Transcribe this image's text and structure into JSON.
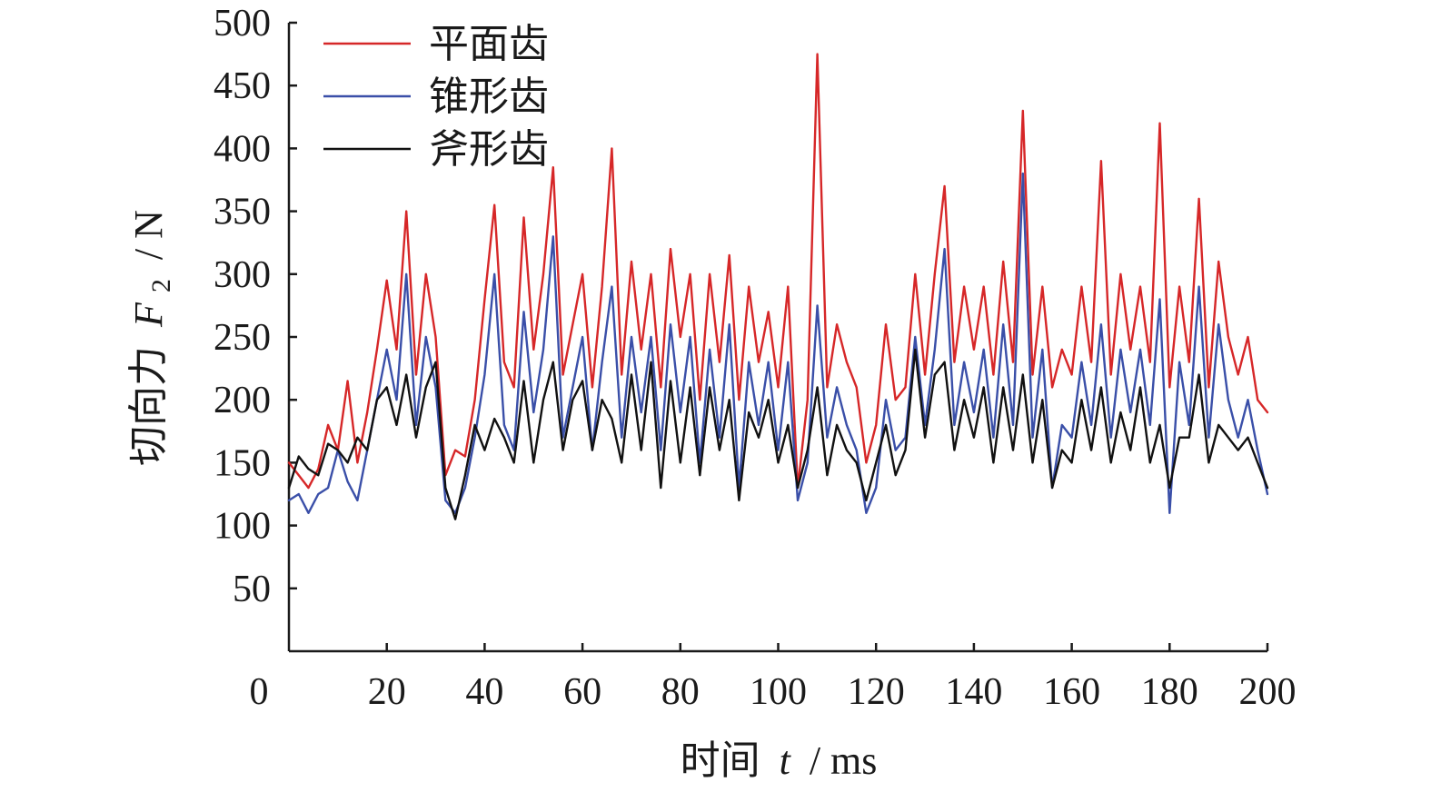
{
  "chart_data": {
    "type": "line",
    "title": "",
    "xlabel": {
      "prefix": "时间",
      "var": "t",
      "unit": "/ ms"
    },
    "ylabel": {
      "prefix": "切向力",
      "var": "F",
      "sub": "2",
      "unit": "/ N"
    },
    "xlim": [
      0,
      200
    ],
    "ylim": [
      0,
      500
    ],
    "x_ticks": [
      0,
      20,
      40,
      60,
      80,
      100,
      120,
      140,
      160,
      180,
      200
    ],
    "y_ticks": [
      50,
      100,
      150,
      200,
      250,
      300,
      350,
      400,
      450,
      500
    ],
    "grid": false,
    "legend_position": "top-left",
    "x": [
      0,
      2,
      4,
      6,
      8,
      10,
      12,
      14,
      16,
      18,
      20,
      22,
      24,
      26,
      28,
      30,
      32,
      34,
      36,
      38,
      40,
      42,
      44,
      46,
      48,
      50,
      52,
      54,
      56,
      58,
      60,
      62,
      64,
      66,
      68,
      70,
      72,
      74,
      76,
      78,
      80,
      82,
      84,
      86,
      88,
      90,
      92,
      94,
      96,
      98,
      100,
      102,
      104,
      106,
      108,
      110,
      112,
      114,
      116,
      118,
      120,
      122,
      124,
      126,
      128,
      130,
      132,
      134,
      136,
      138,
      140,
      142,
      144,
      146,
      148,
      150,
      152,
      154,
      156,
      158,
      160,
      162,
      164,
      166,
      168,
      170,
      172,
      174,
      176,
      178,
      180,
      182,
      184,
      186,
      188,
      190,
      192,
      194,
      196,
      198,
      200
    ],
    "series": [
      {
        "name": "平面齿",
        "color": "#d62728",
        "values": [
          150,
          140,
          130,
          145,
          180,
          160,
          215,
          150,
          190,
          240,
          295,
          240,
          350,
          220,
          300,
          250,
          140,
          160,
          155,
          200,
          280,
          355,
          230,
          210,
          345,
          240,
          300,
          385,
          220,
          260,
          300,
          210,
          290,
          400,
          220,
          310,
          240,
          300,
          210,
          320,
          250,
          300,
          200,
          300,
          230,
          315,
          200,
          290,
          230,
          270,
          210,
          290,
          130,
          200,
          475,
          210,
          260,
          230,
          210,
          150,
          180,
          260,
          200,
          210,
          300,
          220,
          300,
          370,
          230,
          290,
          240,
          290,
          220,
          310,
          230,
          430,
          220,
          290,
          210,
          240,
          220,
          290,
          230,
          390,
          220,
          300,
          240,
          290,
          230,
          420,
          210,
          290,
          230,
          360,
          210,
          310,
          250,
          220,
          250,
          200,
          190
        ]
      },
      {
        "name": "锥形齿",
        "color": "#3a4fa8",
        "values": [
          120,
          125,
          110,
          125,
          130,
          160,
          135,
          120,
          160,
          200,
          240,
          200,
          300,
          180,
          250,
          210,
          120,
          110,
          130,
          170,
          220,
          300,
          180,
          160,
          270,
          190,
          240,
          330,
          170,
          210,
          250,
          160,
          230,
          290,
          170,
          250,
          190,
          250,
          160,
          260,
          190,
          250,
          150,
          240,
          170,
          260,
          130,
          230,
          180,
          230,
          160,
          230,
          120,
          150,
          275,
          170,
          210,
          180,
          160,
          110,
          130,
          200,
          160,
          170,
          250,
          180,
          240,
          320,
          180,
          230,
          190,
          240,
          170,
          260,
          180,
          380,
          170,
          240,
          130,
          180,
          170,
          230,
          180,
          260,
          170,
          240,
          190,
          240,
          180,
          280,
          110,
          230,
          180,
          290,
          170,
          260,
          200,
          170,
          200,
          160,
          125
        ]
      },
      {
        "name": "斧形齿",
        "color": "#111111",
        "values": [
          130,
          155,
          145,
          140,
          165,
          160,
          150,
          170,
          160,
          200,
          210,
          180,
          220,
          170,
          210,
          230,
          130,
          105,
          140,
          180,
          160,
          185,
          170,
          150,
          215,
          150,
          200,
          230,
          160,
          200,
          215,
          160,
          200,
          185,
          150,
          220,
          160,
          230,
          130,
          215,
          150,
          210,
          140,
          210,
          160,
          200,
          120,
          190,
          170,
          200,
          150,
          180,
          130,
          160,
          210,
          140,
          180,
          160,
          150,
          120,
          150,
          180,
          140,
          160,
          240,
          170,
          220,
          230,
          160,
          200,
          170,
          210,
          150,
          210,
          160,
          220,
          150,
          200,
          130,
          160,
          150,
          200,
          160,
          210,
          150,
          190,
          160,
          210,
          150,
          180,
          130,
          170,
          170,
          220,
          150,
          180,
          170,
          160,
          170,
          150,
          130
        ]
      }
    ]
  }
}
